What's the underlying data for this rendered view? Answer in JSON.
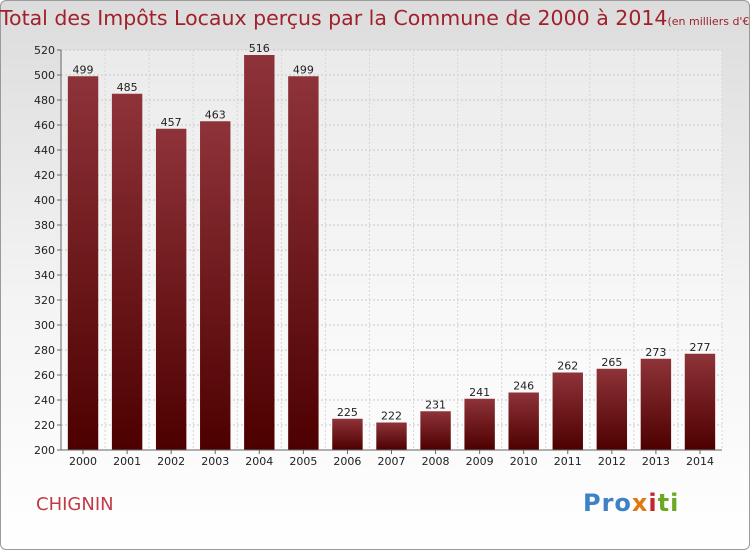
{
  "title": "Total des Impôts Locaux perçus par la Commune de 2000 à 2014",
  "title_unit": "(en milliers d'€)",
  "commune": "CHIGNIN",
  "logo": {
    "p1": "Pro",
    "p2": "x",
    "p3": "i",
    "p4": "ti"
  },
  "colors": {
    "bar_top": "#8e3339",
    "bar_bottom": "#4d0000",
    "title": "#a0212c"
  },
  "chart_data": {
    "type": "bar",
    "title": "Total des Impôts Locaux perçus par la Commune de 2000 à 2014",
    "categories": [
      "2000",
      "2001",
      "2002",
      "2003",
      "2004",
      "2005",
      "2006",
      "2007",
      "2008",
      "2009",
      "2010",
      "2011",
      "2012",
      "2013",
      "2014"
    ],
    "values": [
      499,
      485,
      457,
      463,
      516,
      499,
      225,
      222,
      231,
      241,
      246,
      262,
      265,
      273,
      277
    ],
    "ylim": [
      200,
      520
    ],
    "yticks": [
      200,
      220,
      240,
      260,
      280,
      300,
      320,
      340,
      360,
      380,
      400,
      420,
      440,
      460,
      480,
      500,
      520
    ],
    "grid": true,
    "legend": "none"
  }
}
